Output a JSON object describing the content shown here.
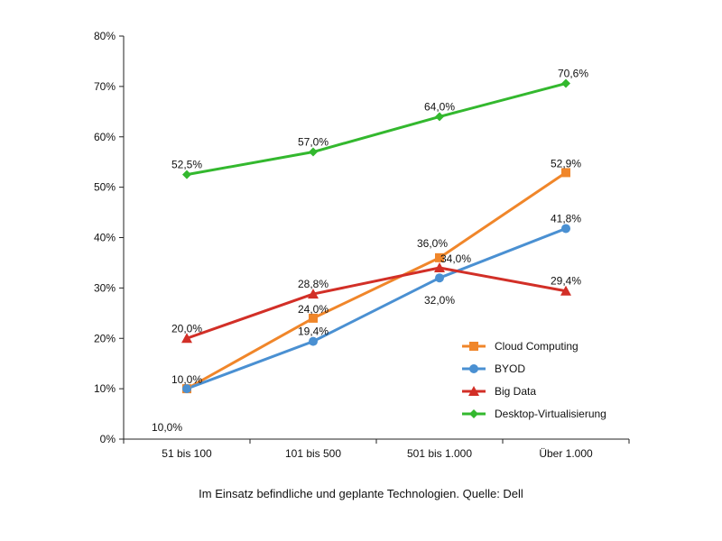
{
  "caption": "Im Einsatz befindliche und geplante Technologien. Quelle: Dell",
  "chart_data": {
    "type": "line",
    "categories": [
      "51 bis 100",
      "101 bis 500",
      "501 bis 1.000",
      "Über 1.000"
    ],
    "ylim": [
      0,
      80
    ],
    "yticks": [
      0,
      10,
      20,
      30,
      40,
      50,
      60,
      70,
      80
    ],
    "ytick_labels": [
      "0%",
      "10%",
      "20%",
      "30%",
      "40%",
      "50%",
      "60%",
      "70%",
      "80%"
    ],
    "grid": false,
    "legend_position": "bottom-right",
    "series": [
      {
        "name": "Cloud Computing",
        "color": "#f0862a",
        "marker": "square",
        "values": [
          10.0,
          24.0,
          36.0,
          52.9
        ],
        "labels": [
          "10,0%",
          "24,0%",
          "36,0%",
          "52,9%"
        ]
      },
      {
        "name": "BYOD",
        "color": "#4a90d2",
        "marker": "circle",
        "values": [
          10.0,
          19.4,
          32.0,
          41.8
        ],
        "labels": [
          "10,0%",
          "19,4%",
          "32,0%",
          "41,8%"
        ]
      },
      {
        "name": "Big Data",
        "color": "#d22f27",
        "marker": "triangle",
        "values": [
          20.0,
          28.8,
          34.0,
          29.4
        ],
        "labels": [
          "20,0%",
          "28,8%",
          "34,0%",
          "29,4%"
        ]
      },
      {
        "name": "Desktop-Virtualisierung",
        "color": "#33b82e",
        "marker": "diamond",
        "values": [
          52.5,
          57.0,
          64.0,
          70.6
        ],
        "labels": [
          "52,5%",
          "57,0%",
          "64,0%",
          "70,6%"
        ]
      }
    ]
  }
}
